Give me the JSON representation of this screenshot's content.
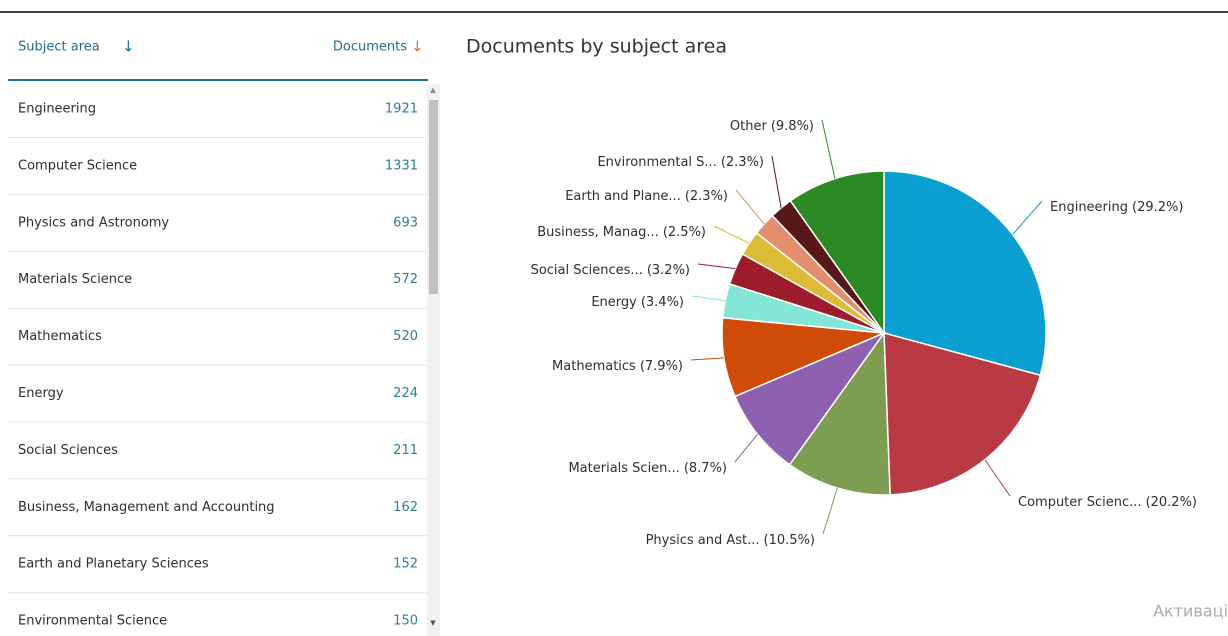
{
  "table": {
    "headers": [
      "Subject area",
      "Documents"
    ],
    "rows": [
      [
        "Engineering",
        "1921"
      ],
      [
        "Computer Science",
        "1331"
      ],
      [
        "Physics and Astronomy",
        "693"
      ],
      [
        "Materials Science",
        "572"
      ],
      [
        "Mathematics",
        "520"
      ],
      [
        "Energy",
        "224"
      ],
      [
        "Social Sciences",
        "211"
      ],
      [
        "Business, Management and Accounting",
        "162"
      ],
      [
        "Earth and Planetary Sciences",
        "152"
      ],
      [
        "Environmental Science",
        "150"
      ]
    ]
  },
  "chart_data": {
    "type": "pie",
    "title": "Documents by subject area",
    "categories": [
      "Engineering",
      "Computer Scienc...",
      "Physics and Ast...",
      "Materials Scien...",
      "Mathematics",
      "Energy",
      "Social Sciences...",
      "Business, Manag...",
      "Earth and Plane...",
      "Environmental S...",
      "Other"
    ],
    "values": [
      29.2,
      20.2,
      10.5,
      8.7,
      7.9,
      3.4,
      3.2,
      2.5,
      2.3,
      2.3,
      9.8
    ],
    "value_labels": [
      "(29.2%)",
      "(20.2%)",
      "(10.5%)",
      "(8.7%)",
      "(7.9%)",
      "(3.4%)",
      "(3.2%)",
      "(2.5%)",
      "(2.3%)",
      "(2.3%)",
      "(9.8%)"
    ],
    "colors": [
      "#0b9fcf",
      "#b93a42",
      "#7c9d52",
      "#8e60b0",
      "#d14b08",
      "#84e6d6",
      "#9b1c2a",
      "#dbbc34",
      "#e38f6d",
      "#561818",
      "#2b8a23"
    ]
  },
  "watermark": "Активаці"
}
